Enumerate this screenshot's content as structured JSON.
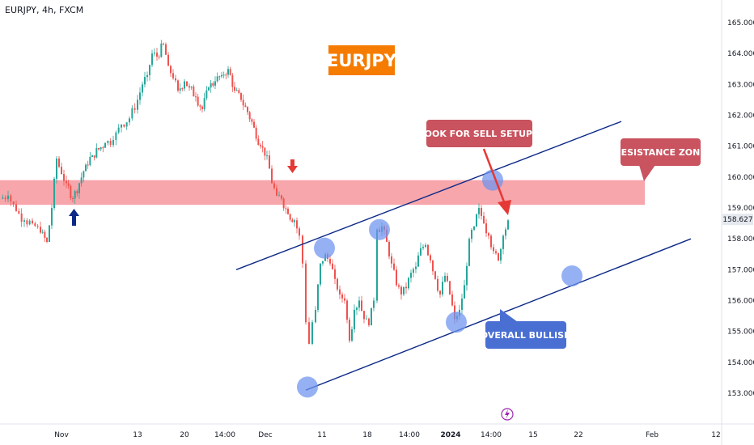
{
  "header": {
    "symbol_line": "EURJPY, 4h, FXCM"
  },
  "title_badge": {
    "label": "EURJPY",
    "color": "#f57c00"
  },
  "callouts": {
    "sell_setups": "LOOK FOR SELL SETUPS",
    "resistance_zone": "RESISTANCE ZONE",
    "overall_bullish": "OVERALL BULLISH"
  },
  "colors": {
    "up": "#26a69a",
    "down": "#ef5350",
    "zone": "#f7a1a7",
    "channel": "#0d2a87",
    "circle": "#6e93ef",
    "red_callout": "#c9535f",
    "blue_callout": "#4a6fd3",
    "up_arrow": "#0d2a87",
    "down_arrow": "#e53935",
    "lightning": "#9c27b0"
  },
  "current_price": "158.627",
  "chart_data": {
    "type": "candlestick",
    "symbol": "EURJPY",
    "timeframe": "4h",
    "source": "FXCM",
    "y_axis": {
      "ticks": [
        153.0,
        154.0,
        155.0,
        156.0,
        157.0,
        158.0,
        159.0,
        160.0,
        161.0,
        162.0,
        163.0,
        164.0,
        165.0
      ],
      "ylim": [
        152.5,
        165.5
      ]
    },
    "x_axis": {
      "ticks": [
        "Nov",
        "13",
        "20",
        "14:00",
        "Dec",
        "11",
        "18",
        "14:00",
        "2024",
        "14:00",
        "15",
        "22",
        "Feb",
        "12"
      ]
    },
    "price_path": [
      [
        0,
        159.3
      ],
      [
        10,
        159.4
      ],
      [
        20,
        158.9
      ],
      [
        30,
        158.6
      ],
      [
        40,
        158.5
      ],
      [
        50,
        158.2
      ],
      [
        58,
        157.9
      ],
      [
        64,
        159.0
      ],
      [
        70,
        160.6
      ],
      [
        76,
        160.1
      ],
      [
        82,
        159.8
      ],
      [
        90,
        159.3
      ],
      [
        98,
        159.8
      ],
      [
        106,
        160.4
      ],
      [
        114,
        160.7
      ],
      [
        122,
        160.9
      ],
      [
        130,
        161.1
      ],
      [
        140,
        161.2
      ],
      [
        150,
        161.7
      ],
      [
        160,
        161.9
      ],
      [
        170,
        162.5
      ],
      [
        176,
        163.0
      ],
      [
        182,
        163.3
      ],
      [
        188,
        164.0
      ],
      [
        194,
        163.9
      ],
      [
        202,
        164.3
      ],
      [
        208,
        163.6
      ],
      [
        214,
        163.2
      ],
      [
        220,
        162.8
      ],
      [
        228,
        163.1
      ],
      [
        234,
        162.9
      ],
      [
        242,
        162.6
      ],
      [
        250,
        162.2
      ],
      [
        258,
        162.9
      ],
      [
        266,
        163.1
      ],
      [
        274,
        163.3
      ],
      [
        282,
        163.5
      ],
      [
        290,
        162.8
      ],
      [
        298,
        162.5
      ],
      [
        306,
        162.1
      ],
      [
        314,
        161.6
      ],
      [
        322,
        161.0
      ],
      [
        330,
        160.7
      ],
      [
        336,
        159.8
      ],
      [
        342,
        159.4
      ],
      [
        348,
        159.3
      ],
      [
        356,
        158.8
      ],
      [
        364,
        158.6
      ],
      [
        370,
        158.1
      ],
      [
        374,
        157.2
      ],
      [
        378,
        155.3
      ],
      [
        382,
        154.6
      ],
      [
        386,
        155.3
      ],
      [
        390,
        155.7
      ],
      [
        396,
        157.2
      ],
      [
        402,
        157.5
      ],
      [
        408,
        157.2
      ],
      [
        414,
        156.7
      ],
      [
        420,
        156.2
      ],
      [
        426,
        156.0
      ],
      [
        432,
        154.7
      ],
      [
        438,
        155.7
      ],
      [
        444,
        156.0
      ],
      [
        450,
        155.4
      ],
      [
        456,
        155.2
      ],
      [
        462,
        156.0
      ],
      [
        466,
        158.3
      ],
      [
        472,
        158.4
      ],
      [
        478,
        157.9
      ],
      [
        484,
        157.2
      ],
      [
        490,
        156.5
      ],
      [
        496,
        156.2
      ],
      [
        502,
        156.4
      ],
      [
        508,
        156.9
      ],
      [
        514,
        157.1
      ],
      [
        520,
        157.7
      ],
      [
        526,
        157.8
      ],
      [
        532,
        157.3
      ],
      [
        538,
        156.7
      ],
      [
        544,
        156.2
      ],
      [
        550,
        156.8
      ],
      [
        556,
        156.2
      ],
      [
        562,
        155.4
      ],
      [
        568,
        155.7
      ],
      [
        574,
        156.5
      ],
      [
        580,
        158.0
      ],
      [
        586,
        158.4
      ],
      [
        592,
        159.0
      ],
      [
        598,
        158.5
      ],
      [
        604,
        158.1
      ],
      [
        610,
        157.6
      ],
      [
        616,
        157.3
      ],
      [
        622,
        158.1
      ],
      [
        628,
        158.6
      ]
    ],
    "resistance_zone": {
      "from": 159.1,
      "to": 159.9
    },
    "channel": {
      "upper": [
        [
          292,
          157.0
        ],
        [
          768,
          161.8
        ]
      ],
      "lower": [
        [
          378,
          153.1
        ],
        [
          854,
          158.0
        ]
      ]
    },
    "touch_points": [
      [
        380,
        153.2
      ],
      [
        401,
        157.7
      ],
      [
        469,
        158.3
      ],
      [
        564,
        155.3
      ],
      [
        609,
        159.9
      ],
      [
        707,
        156.8
      ]
    ]
  }
}
